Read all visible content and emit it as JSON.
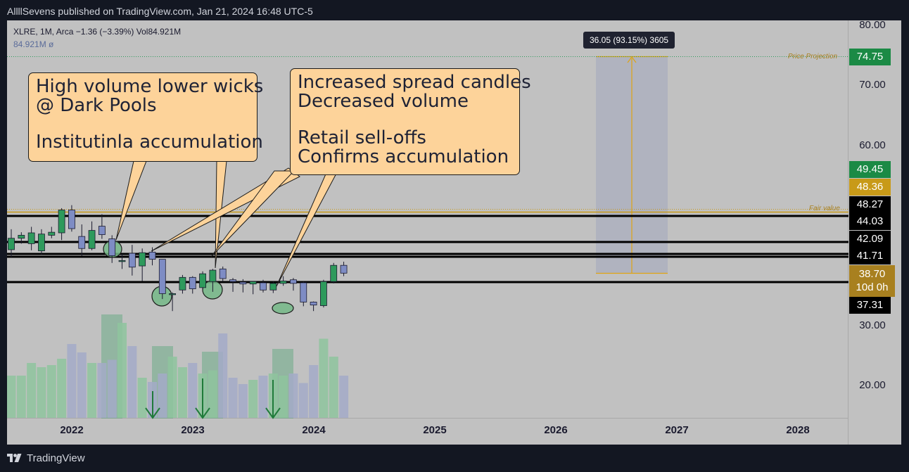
{
  "header": {
    "text": "AllllSevens published on TradingView.com, Jan 21, 2024 16:48 UTC-5"
  },
  "symbol": {
    "line1": "XLRE, 1M, Arca  −1.36 (−3.39%)  Vol84.921M",
    "line2": "84.921M  ø"
  },
  "callouts": {
    "left": {
      "line1": "High volume lower wicks",
      "line2": "@ Dark Pools",
      "line3": "Institutinla accumulation"
    },
    "right": {
      "line1": "Increased spread candles",
      "line2": "Decreased volume",
      "line3": "Retail sell-offs",
      "line4": "Confirms accumulation"
    }
  },
  "measure": {
    "label": "36.05 (93.15%) 3605"
  },
  "annotations": {
    "price_projection": "Price Projection",
    "fair_value": "Fair value"
  },
  "price_axis": [
    "80.00",
    "70.00",
    "60.00",
    "30.00",
    "20.00"
  ],
  "price_tags": {
    "projection": "74.75",
    "green": "49.45",
    "gold": "48.36",
    "l1": "48.27",
    "l2": "44.03",
    "l3": "42.09",
    "l4": "41.71",
    "current_price": "38.70",
    "current_time": "10d 0h",
    "l5": "37.31"
  },
  "time_axis": [
    "2022",
    "2023",
    "2024",
    "2025",
    "2026",
    "2027",
    "2028"
  ],
  "footer": {
    "logo_text": "TradingView"
  },
  "colors": {
    "bull": "#2e9a5c",
    "bear": "#7e8cc4",
    "projection": "#e0a412",
    "tag_green": "#1b8a45",
    "tag_gold": "#c89a18",
    "tag_black": "#000000"
  },
  "chart_data": {
    "type": "candlestick",
    "symbol": "XLRE",
    "interval": "1M",
    "candles": [
      {
        "o": 42.6,
        "h": 46.0,
        "l": 41.4,
        "c": 44.5
      },
      {
        "o": 44.5,
        "h": 45.5,
        "l": 43.6,
        "c": 45.0
      },
      {
        "o": 43.6,
        "h": 46.4,
        "l": 42.5,
        "c": 45.4
      },
      {
        "o": 42.4,
        "h": 46.0,
        "l": 41.8,
        "c": 45.2
      },
      {
        "o": 45.0,
        "h": 46.4,
        "l": 44.5,
        "c": 45.5
      },
      {
        "o": 45.4,
        "h": 49.5,
        "l": 44.2,
        "c": 49.2
      },
      {
        "o": 49.2,
        "h": 50.0,
        "l": 45.6,
        "c": 46.1
      },
      {
        "o": 44.8,
        "h": 46.8,
        "l": 41.6,
        "c": 42.8
      },
      {
        "o": 42.8,
        "h": 47.3,
        "l": 42.5,
        "c": 45.8
      },
      {
        "o": 46.5,
        "h": 48.5,
        "l": 44.4,
        "c": 45.1
      },
      {
        "o": 44.4,
        "h": 45.0,
        "l": 40.4,
        "c": 41.6
      },
      {
        "o": 40.8,
        "h": 41.9,
        "l": 39.4,
        "c": 40.8
      },
      {
        "o": 42.0,
        "h": 43.4,
        "l": 38.3,
        "c": 39.7
      },
      {
        "o": 39.9,
        "h": 42.8,
        "l": 37.4,
        "c": 42.1
      },
      {
        "o": 42.2,
        "h": 43.0,
        "l": 40.0,
        "c": 41.0
      },
      {
        "o": 41.0,
        "h": 40.9,
        "l": 34.4,
        "c": 35.3
      },
      {
        "o": 35.3,
        "h": 35.5,
        "l": 32.4,
        "c": 35.3
      },
      {
        "o": 35.9,
        "h": 38.4,
        "l": 35.3,
        "c": 38.0
      },
      {
        "o": 38.0,
        "h": 38.2,
        "l": 35.3,
        "c": 36.1
      },
      {
        "o": 36.3,
        "h": 39.0,
        "l": 36.0,
        "c": 38.6
      },
      {
        "o": 37.3,
        "h": 39.4,
        "l": 35.6,
        "c": 39.2
      },
      {
        "o": 39.4,
        "h": 39.8,
        "l": 37.3,
        "c": 37.8
      },
      {
        "o": 37.6,
        "h": 37.9,
        "l": 35.6,
        "c": 37.3
      },
      {
        "o": 37.2,
        "h": 37.7,
        "l": 35.5,
        "c": 36.9
      },
      {
        "o": 36.9,
        "h": 37.3,
        "l": 35.2,
        "c": 37.3
      },
      {
        "o": 37.1,
        "h": 37.6,
        "l": 35.5,
        "c": 35.9
      },
      {
        "o": 35.9,
        "h": 37.3,
        "l": 35.4,
        "c": 37.0
      },
      {
        "o": 37.0,
        "h": 38.2,
        "l": 36.6,
        "c": 37.4
      },
      {
        "o": 37.6,
        "h": 37.9,
        "l": 35.8,
        "c": 37.0
      },
      {
        "o": 37.1,
        "h": 37.3,
        "l": 33.2,
        "c": 33.9
      },
      {
        "o": 33.9,
        "h": 34.0,
        "l": 32.4,
        "c": 33.4
      },
      {
        "o": 33.3,
        "h": 37.6,
        "l": 33.0,
        "c": 37.3
      },
      {
        "o": 37.3,
        "h": 40.4,
        "l": 37.0,
        "c": 40.0
      },
      {
        "o": 40.0,
        "h": 40.6,
        "l": 38.2,
        "c": 38.7
      }
    ],
    "volumes": [
      0.4,
      0.4,
      0.52,
      0.48,
      0.5,
      0.56,
      0.7,
      0.62,
      0.52,
      0.52,
      0.55,
      0.9,
      0.68,
      0.38,
      0.34,
      0.42,
      0.58,
      0.48,
      0.52,
      0.42,
      0.45,
      0.8,
      0.38,
      0.32,
      0.36,
      0.4,
      0.42,
      0.4,
      0.42,
      0.33,
      0.5,
      0.75,
      0.58,
      0.4
    ],
    "price_levels": [
      48.27,
      44.03,
      42.09,
      41.71,
      37.31
    ],
    "projection_target": 74.75,
    "fair_value": 48.36
  }
}
